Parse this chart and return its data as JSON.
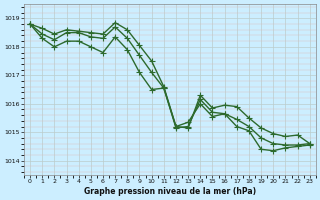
{
  "background_color": "#cceeff",
  "grid_color_minor": "#bbdddd",
  "grid_color_major": "#99bbbb",
  "line_color": "#2d6a2d",
  "xlabel": "Graphe pression niveau de la mer (hPa)",
  "xlim": [
    -0.5,
    23.5
  ],
  "ylim": [
    1013.5,
    1019.5
  ],
  "yticks": [
    1014,
    1015,
    1016,
    1017,
    1018,
    1019
  ],
  "xticks": [
    0,
    1,
    2,
    3,
    4,
    5,
    6,
    7,
    8,
    9,
    10,
    11,
    12,
    13,
    14,
    15,
    16,
    17,
    18,
    19,
    20,
    21,
    22,
    23
  ],
  "series": [
    [
      1018.8,
      1018.65,
      1018.45,
      1018.6,
      1018.55,
      1018.5,
      1018.45,
      1018.85,
      1018.6,
      1018.05,
      1017.5,
      1016.6,
      1015.2,
      1015.15,
      1016.3,
      1015.85,
      1015.95,
      1015.9,
      1015.5,
      1015.15,
      1014.95,
      1014.85,
      1014.9,
      1014.6
    ],
    [
      1018.8,
      1018.45,
      1018.25,
      1018.5,
      1018.5,
      1018.35,
      1018.3,
      1018.7,
      1018.3,
      1017.7,
      1017.1,
      1016.55,
      1015.15,
      1015.2,
      1016.15,
      1015.7,
      1015.65,
      1015.45,
      1015.2,
      1014.8,
      1014.6,
      1014.55,
      1014.55,
      1014.6
    ],
    [
      1018.8,
      1018.3,
      1018.0,
      1018.2,
      1018.2,
      1018.0,
      1017.8,
      1018.35,
      1017.9,
      1017.1,
      1016.5,
      1016.55,
      1015.2,
      1015.35,
      1016.0,
      1015.55,
      1015.65,
      1015.2,
      1015.05,
      1014.4,
      1014.35,
      1014.45,
      1014.5,
      1014.55
    ]
  ],
  "marker": "+",
  "marker_size": 4,
  "linewidth": 1.0
}
